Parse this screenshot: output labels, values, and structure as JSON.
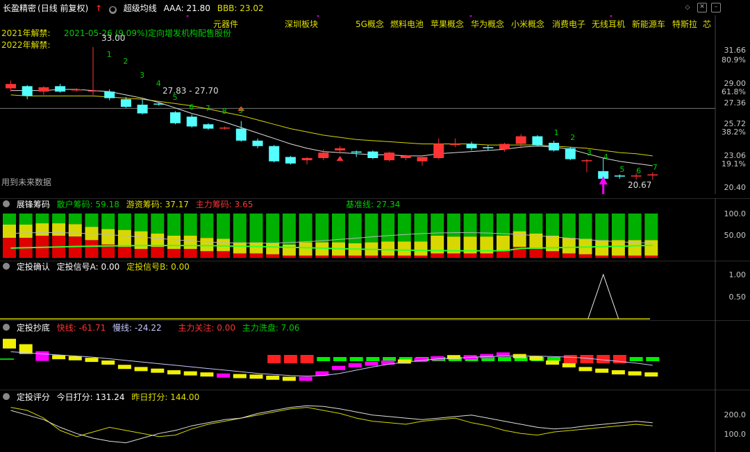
{
  "top_bar": {
    "stock_name": "长盈精密",
    "period": "(日线 前复权)",
    "indicator_name": "超级均线",
    "aaa_label": "AAA: 21.80",
    "bbb_label": "BBB: 23.02",
    "concepts": [
      "元器件",
      "深圳板块",
      "5G概念",
      "燃料电池",
      "苹果概念",
      "华为概念",
      "小米概念",
      "消费电子",
      "无线耳机",
      "新能源车",
      "特斯拉",
      "芯"
    ]
  },
  "price_panel": {
    "unlock_2021": "2021年解禁:",
    "unlock_2021_detail": "2021-05-26 (9.09%)定向增发机构配售股份",
    "unlock_2022": "2022年解禁:",
    "high_label": "33.00",
    "range_label": "27.83 - 27.70",
    "low_label": "20.67",
    "future_data_note": "用到未来数据",
    "y_ticks": [
      {
        "value": "31.66",
        "color": "#c8c8c8"
      },
      {
        "value": "80.9%",
        "color": "#c8c8c8"
      },
      {
        "value": "29.00",
        "color": "#c8c8c8"
      },
      {
        "value": "61.8%",
        "color": "#c8c8c8"
      },
      {
        "value": "27.36",
        "color": "#c8c8c8"
      },
      {
        "value": "25.72",
        "color": "#c8c8c8"
      },
      {
        "value": "38.2%",
        "color": "#c8c8c8"
      },
      {
        "value": "23.06",
        "color": "#c8c8c8"
      },
      {
        "value": "19.1%",
        "color": "#c8c8c8"
      },
      {
        "value": "20.40",
        "color": "#c8c8c8"
      }
    ],
    "count_labels_a": [
      "1",
      "2",
      "3",
      "4",
      "5",
      "6",
      "7",
      "8",
      "9"
    ],
    "count_labels_b": [
      "1",
      "2",
      "3",
      "4",
      "5",
      "6",
      "7"
    ]
  },
  "chips_panel": {
    "name": "展锋筹码",
    "retail_label": "散户筹码: 59.18",
    "hot_label": "游资筹码: 37.17",
    "main_label": "主力筹码: 3.65",
    "baseline_label": "基准线: 27.34",
    "y_ticks": [
      "100.0",
      "50.00"
    ]
  },
  "invest_panel": {
    "name": "定投确认",
    "signal_a": "定投信号A: 0.00",
    "signal_b": "定投信号B: 0.00",
    "y_ticks": [
      "1.00",
      "0.50"
    ]
  },
  "bottom_panel": {
    "name": "定投抄底",
    "fast_line": "快线: -61.71",
    "slow_line": "慢线: -24.22",
    "main_attention": "主力关注: 0.00",
    "main_wash": "主力洗盘: 7.06"
  },
  "score_panel": {
    "name": "定投评分",
    "today_score": "今日打分: 131.24",
    "yesterday_score": "昨日打分: 144.00",
    "y_ticks": [
      "200.0",
      "100.0"
    ]
  },
  "colors": {
    "up": "#ff3333",
    "down": "#54ffff",
    "ma_white": "#e0e0e0",
    "ma_yellow": "#d8d800",
    "green": "#00cc00",
    "yellow": "#e0e000",
    "magenta": "#ff00ff"
  },
  "chart_data": {
    "type": "candlestick",
    "candles": [
      {
        "o": 29.2,
        "h": 29.9,
        "l": 28.9,
        "c": 29.6
      },
      {
        "o": 29.4,
        "h": 29.5,
        "l": 28.2,
        "c": 28.5
      },
      {
        "o": 28.9,
        "h": 29.4,
        "l": 28.6,
        "c": 29.3
      },
      {
        "o": 29.4,
        "h": 29.6,
        "l": 28.8,
        "c": 28.9
      },
      {
        "o": 29.1,
        "h": 29.2,
        "l": 28.9,
        "c": 29.1
      },
      {
        "o": 29.0,
        "h": 33.0,
        "l": 28.6,
        "c": 29.0
      },
      {
        "o": 28.9,
        "h": 29.1,
        "l": 28.1,
        "c": 28.3
      },
      {
        "o": 28.2,
        "h": 28.4,
        "l": 27.4,
        "c": 27.5
      },
      {
        "o": 27.7,
        "h": 28.2,
        "l": 26.8,
        "c": 26.9
      },
      {
        "o": 27.8,
        "h": 27.9,
        "l": 27.6,
        "c": 27.75
      },
      {
        "o": 27.0,
        "h": 27.1,
        "l": 25.9,
        "c": 26.0
      },
      {
        "o": 26.6,
        "h": 26.8,
        "l": 25.6,
        "c": 25.7
      },
      {
        "o": 25.9,
        "h": 26.0,
        "l": 25.4,
        "c": 25.5
      },
      {
        "o": 25.6,
        "h": 25.7,
        "l": 25.4,
        "c": 25.6
      },
      {
        "o": 25.5,
        "h": 26.2,
        "l": 24.3,
        "c": 24.4
      },
      {
        "o": 24.4,
        "h": 24.6,
        "l": 23.7,
        "c": 23.9
      },
      {
        "o": 23.9,
        "h": 24.0,
        "l": 22.4,
        "c": 22.5
      },
      {
        "o": 22.9,
        "h": 23.0,
        "l": 22.2,
        "c": 22.3
      },
      {
        "o": 22.6,
        "h": 22.9,
        "l": 22.2,
        "c": 22.8
      },
      {
        "o": 22.8,
        "h": 23.6,
        "l": 22.6,
        "c": 23.3
      },
      {
        "o": 23.5,
        "h": 23.9,
        "l": 23.2,
        "c": 23.7
      },
      {
        "o": 23.4,
        "h": 23.5,
        "l": 22.9,
        "c": 23.3
      },
      {
        "o": 23.4,
        "h": 23.5,
        "l": 22.7,
        "c": 22.8
      },
      {
        "o": 22.6,
        "h": 23.4,
        "l": 22.5,
        "c": 23.3
      },
      {
        "o": 22.8,
        "h": 23.1,
        "l": 22.6,
        "c": 23.0
      },
      {
        "o": 22.5,
        "h": 22.9,
        "l": 22.1,
        "c": 22.9
      },
      {
        "o": 22.8,
        "h": 24.6,
        "l": 22.7,
        "c": 24.1
      },
      {
        "o": 24.1,
        "h": 24.6,
        "l": 23.8,
        "c": 24.1
      },
      {
        "o": 24.1,
        "h": 24.3,
        "l": 23.5,
        "c": 23.7
      },
      {
        "o": 23.8,
        "h": 24.0,
        "l": 23.5,
        "c": 23.7
      },
      {
        "o": 23.6,
        "h": 24.2,
        "l": 23.4,
        "c": 24.1
      },
      {
        "o": 24.1,
        "h": 25.0,
        "l": 23.7,
        "c": 24.8
      },
      {
        "o": 24.8,
        "h": 24.9,
        "l": 23.9,
        "c": 24.0
      },
      {
        "o": 24.2,
        "h": 24.4,
        "l": 23.4,
        "c": 23.5
      },
      {
        "o": 23.7,
        "h": 23.8,
        "l": 22.6,
        "c": 22.7
      },
      {
        "o": 22.6,
        "h": 22.7,
        "l": 21.5,
        "c": 22.6
      },
      {
        "o": 21.6,
        "h": 22.8,
        "l": 20.4,
        "c": 20.9
      },
      {
        "o": 21.2,
        "h": 21.3,
        "l": 20.9,
        "c": 21.1
      },
      {
        "o": 21.2,
        "h": 21.4,
        "l": 20.8,
        "c": 21.2
      },
      {
        "o": 21.3,
        "h": 21.5,
        "l": 20.8,
        "c": 21.3
      }
    ],
    "ma_white": [
      29.0,
      29.0,
      29.0,
      29.1,
      29.1,
      29.0,
      28.9,
      28.6,
      28.3,
      27.9,
      27.4,
      26.9,
      26.5,
      26.1,
      25.6,
      25.1,
      24.6,
      24.1,
      23.7,
      23.4,
      23.3,
      23.2,
      23.1,
      23.1,
      23.0,
      23.0,
      23.2,
      23.3,
      23.4,
      23.5,
      23.6,
      23.8,
      23.9,
      23.8,
      23.6,
      23.2,
      22.8,
      22.5,
      22.3,
      22.1
    ],
    "ma_yellow": [
      28.6,
      28.5,
      28.5,
      28.5,
      28.5,
      28.5,
      28.4,
      28.3,
      28.2,
      28.0,
      27.8,
      27.6,
      27.3,
      27.0,
      26.7,
      26.3,
      25.9,
      25.5,
      25.2,
      24.9,
      24.7,
      24.5,
      24.4,
      24.3,
      24.2,
      24.1,
      24.1,
      24.1,
      24.1,
      24.0,
      24.0,
      24.0,
      24.0,
      23.9,
      23.8,
      23.7,
      23.5,
      23.3,
      23.2,
      23.0
    ],
    "y_range": [
      20.0,
      34.0
    ],
    "chips": [
      {
        "main": 0.45,
        "hot": 0.3
      },
      {
        "main": 0.45,
        "hot": 0.3
      },
      {
        "main": 0.5,
        "hot": 0.28
      },
      {
        "main": 0.5,
        "hot": 0.28
      },
      {
        "main": 0.48,
        "hot": 0.28
      },
      {
        "main": 0.4,
        "hot": 0.3
      },
      {
        "main": 0.3,
        "hot": 0.35
      },
      {
        "main": 0.25,
        "hot": 0.38
      },
      {
        "main": 0.2,
        "hot": 0.4
      },
      {
        "main": 0.25,
        "hot": 0.3
      },
      {
        "main": 0.2,
        "hot": 0.3
      },
      {
        "main": 0.2,
        "hot": 0.3
      },
      {
        "main": 0.15,
        "hot": 0.3
      },
      {
        "main": 0.15,
        "hot": 0.28
      },
      {
        "main": 0.1,
        "hot": 0.25
      },
      {
        "main": 0.1,
        "hot": 0.25
      },
      {
        "main": 0.08,
        "hot": 0.25
      },
      {
        "main": 0.05,
        "hot": 0.25
      },
      {
        "main": 0.05,
        "hot": 0.3
      },
      {
        "main": 0.05,
        "hot": 0.3
      },
      {
        "main": 0.05,
        "hot": 0.3
      },
      {
        "main": 0.05,
        "hot": 0.28
      },
      {
        "main": 0.05,
        "hot": 0.3
      },
      {
        "main": 0.05,
        "hot": 0.32
      },
      {
        "main": 0.05,
        "hot": 0.32
      },
      {
        "main": 0.05,
        "hot": 0.32
      },
      {
        "main": 0.1,
        "hot": 0.4
      },
      {
        "main": 0.1,
        "hot": 0.38
      },
      {
        "main": 0.1,
        "hot": 0.38
      },
      {
        "main": 0.1,
        "hot": 0.38
      },
      {
        "main": 0.15,
        "hot": 0.35
      },
      {
        "main": 0.25,
        "hot": 0.35
      },
      {
        "main": 0.2,
        "hot": 0.35
      },
      {
        "main": 0.15,
        "hot": 0.35
      },
      {
        "main": 0.1,
        "hot": 0.35
      },
      {
        "main": 0.08,
        "hot": 0.35
      },
      {
        "main": 0.05,
        "hot": 0.35
      },
      {
        "main": 0.05,
        "hot": 0.35
      },
      {
        "main": 0.05,
        "hot": 0.35
      },
      {
        "main": 0.05,
        "hot": 0.35
      }
    ],
    "bottom_bars": [
      {
        "v": 0.85,
        "c": "yellow"
      },
      {
        "v": 0.75,
        "c": "yellow"
      },
      {
        "v": 0.62,
        "c": "magenta"
      },
      {
        "v": 0.6,
        "c": "yellow"
      },
      {
        "v": 0.58,
        "c": "yellow"
      },
      {
        "v": 0.55,
        "c": "yellow"
      },
      {
        "v": 0.5,
        "c": "yellow"
      },
      {
        "v": 0.42,
        "c": "yellow"
      },
      {
        "v": 0.38,
        "c": "yellow"
      },
      {
        "v": 0.35,
        "c": "yellow"
      },
      {
        "v": 0.32,
        "c": "yellow"
      },
      {
        "v": 0.3,
        "c": "yellow"
      },
      {
        "v": 0.28,
        "c": "yellow"
      },
      {
        "v": 0.26,
        "c": "magenta"
      },
      {
        "v": 0.25,
        "c": "yellow"
      },
      {
        "v": 0.24,
        "c": "yellow"
      },
      {
        "v": 0.22,
        "c": "yellow"
      },
      {
        "v": 0.2,
        "c": "yellow"
      },
      {
        "v": 0.2,
        "c": "magenta"
      },
      {
        "v": 0.3,
        "c": "magenta"
      },
      {
        "v": 0.4,
        "c": "magenta"
      },
      {
        "v": 0.45,
        "c": "magenta"
      },
      {
        "v": 0.48,
        "c": "magenta"
      },
      {
        "v": 0.5,
        "c": "magenta"
      },
      {
        "v": 0.52,
        "c": "yellow"
      },
      {
        "v": 0.55,
        "c": "magenta"
      },
      {
        "v": 0.58,
        "c": "magenta"
      },
      {
        "v": 0.6,
        "c": "yellow"
      },
      {
        "v": 0.6,
        "c": "magenta"
      },
      {
        "v": 0.62,
        "c": "magenta"
      },
      {
        "v": 0.65,
        "c": "magenta"
      },
      {
        "v": 0.62,
        "c": "yellow"
      },
      {
        "v": 0.58,
        "c": "yellow"
      },
      {
        "v": 0.5,
        "c": "yellow"
      },
      {
        "v": 0.45,
        "c": "yellow"
      },
      {
        "v": 0.38,
        "c": "yellow"
      },
      {
        "v": 0.35,
        "c": "yellow"
      },
      {
        "v": 0.32,
        "c": "yellow"
      },
      {
        "v": 0.3,
        "c": "yellow"
      },
      {
        "v": 0.28,
        "c": "yellow"
      }
    ],
    "bottom_upper": [
      {
        "i": 16,
        "c": "red"
      },
      {
        "i": 17,
        "c": "red"
      },
      {
        "i": 18,
        "c": "red"
      },
      {
        "i": 19,
        "c": "green"
      },
      {
        "i": 20,
        "c": "green"
      },
      {
        "i": 21,
        "c": "green"
      },
      {
        "i": 22,
        "c": "green"
      },
      {
        "i": 23,
        "c": "green"
      },
      {
        "i": 24,
        "c": "green"
      },
      {
        "i": 25,
        "c": "green"
      },
      {
        "i": 26,
        "c": "green"
      },
      {
        "i": 27,
        "c": "green"
      },
      {
        "i": 28,
        "c": "green"
      },
      {
        "i": 29,
        "c": "green"
      },
      {
        "i": 30,
        "c": "green"
      },
      {
        "i": 31,
        "c": "green"
      },
      {
        "i": 32,
        "c": "green"
      },
      {
        "i": 33,
        "c": "green"
      },
      {
        "i": 34,
        "c": "red"
      },
      {
        "i": 35,
        "c": "red"
      },
      {
        "i": 36,
        "c": "red"
      },
      {
        "i": 37,
        "c": "red"
      },
      {
        "i": 38,
        "c": "green"
      },
      {
        "i": 39,
        "c": "green"
      }
    ],
    "score_white": [
      185,
      170,
      155,
      130,
      110,
      95,
      85,
      80,
      95,
      110,
      120,
      135,
      145,
      155,
      160,
      175,
      185,
      195,
      200,
      198,
      190,
      180,
      170,
      165,
      160,
      155,
      160,
      165,
      170,
      160,
      150,
      140,
      130,
      125,
      128,
      135,
      140,
      145,
      150,
      145
    ],
    "score_yellow": [
      195,
      185,
      160,
      120,
      100,
      115,
      130,
      120,
      110,
      100,
      105,
      125,
      140,
      150,
      160,
      170,
      180,
      190,
      195,
      185,
      175,
      160,
      150,
      145,
      140,
      150,
      155,
      160,
      145,
      135,
      120,
      110,
      105,
      115,
      120,
      125,
      130,
      135,
      140,
      135
    ]
  }
}
